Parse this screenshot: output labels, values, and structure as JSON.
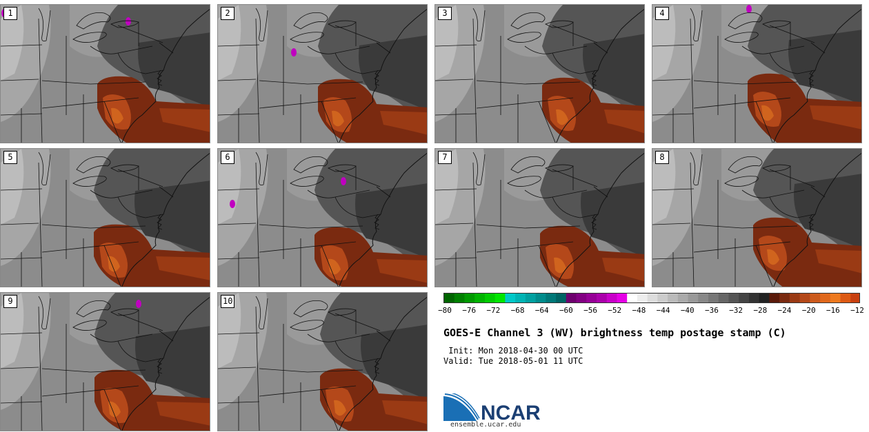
{
  "panels": [
    "1",
    "2",
    "3",
    "4",
    "5",
    "6",
    "7",
    "8",
    "9",
    "10"
  ],
  "colorbar": {
    "colors": [
      "#006400",
      "#007f00",
      "#009900",
      "#00b300",
      "#00cc00",
      "#00e600",
      "#00c8c8",
      "#00b4b4",
      "#00a0a0",
      "#008c8c",
      "#007878",
      "#006464",
      "#6e006e",
      "#820082",
      "#960096",
      "#aa00aa",
      "#c800c8",
      "#e600e6",
      "#ffffff",
      "#eeeeee",
      "#dddddd",
      "#cccccc",
      "#bbbbbb",
      "#aaaaaa",
      "#999999",
      "#888888",
      "#777777",
      "#666666",
      "#555555",
      "#444444",
      "#333333",
      "#222222",
      "#5a1a0a",
      "#7a2a10",
      "#9a3a14",
      "#b44818",
      "#cc5a1c",
      "#e0681c",
      "#ee7a20",
      "#dd5a14",
      "#c84010"
    ],
    "min": -80,
    "max": -12,
    "ticks": [
      "−80",
      "−76",
      "−72",
      "−68",
      "−64",
      "−60",
      "−56",
      "−52",
      "−48",
      "−44",
      "−40",
      "−36",
      "−32",
      "−28",
      "−24",
      "−20",
      "−16",
      "−12"
    ],
    "tick_values": [
      -80,
      -76,
      -72,
      -68,
      -64,
      -60,
      -56,
      -52,
      -48,
      -44,
      -40,
      -36,
      -32,
      -28,
      -24,
      -20,
      -16,
      -12
    ]
  },
  "title": "GOES-E Channel 3 (WV) brightness temp postage stamp (C)",
  "init": " Init: Mon 2018-04-30 00 UTC",
  "valid": "Valid: Tue 2018-05-01 11 UTC",
  "logo": {
    "name": "NCAR",
    "url": "ensemble.ucar.edu"
  }
}
